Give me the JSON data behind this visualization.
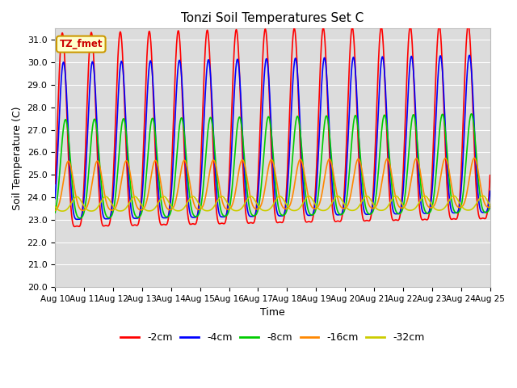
{
  "title": "Tonzi Soil Temperatures Set C",
  "xlabel": "Time",
  "ylabel": "Soil Temperature (C)",
  "ylim": [
    20.0,
    31.5
  ],
  "yticks": [
    20.0,
    21.0,
    22.0,
    23.0,
    24.0,
    25.0,
    26.0,
    27.0,
    28.0,
    29.0,
    30.0,
    31.0
  ],
  "xtick_labels": [
    "Aug 10",
    "Aug 11",
    "Aug 12",
    "Aug 13",
    "Aug 14",
    "Aug 15",
    "Aug 16",
    "Aug 17",
    "Aug 18",
    "Aug 19",
    "Aug 20",
    "Aug 21",
    "Aug 22",
    "Aug 23",
    "Aug 24",
    "Aug 25"
  ],
  "series": {
    "-2cm": {
      "color": "#ff0000",
      "amplitude": 4.3,
      "mean": 25.8,
      "phase": 0.0,
      "phase2": 0.0,
      "amp2": 1.2,
      "trend": 0.025
    },
    "-4cm": {
      "color": "#0000ff",
      "amplitude": 3.5,
      "mean": 25.6,
      "phase": 0.08,
      "phase2": 0.08,
      "amp2": 0.9,
      "trend": 0.022
    },
    "-8cm": {
      "color": "#00cc00",
      "amplitude": 2.2,
      "mean": 24.8,
      "phase": 0.22,
      "phase2": 0.22,
      "amp2": 0.45,
      "trend": 0.018
    },
    "-16cm": {
      "color": "#ff8800",
      "amplitude": 1.1,
      "mean": 24.3,
      "phase": 0.42,
      "phase2": 0.42,
      "amp2": 0.2,
      "trend": 0.01
    },
    "-32cm": {
      "color": "#cccc00",
      "amplitude": 0.32,
      "mean": 23.65,
      "phase": 1.0,
      "phase2": 1.0,
      "amp2": 0.05,
      "trend": 0.003
    }
  },
  "annotation_text": "TZ_fmet",
  "annotation_color": "#cc0000",
  "annotation_bg": "#ffffcc",
  "annotation_edge": "#cc9900",
  "bg_color": "#dcdcdc",
  "grid_color": "#ffffff",
  "fig_bg": "#ffffff"
}
